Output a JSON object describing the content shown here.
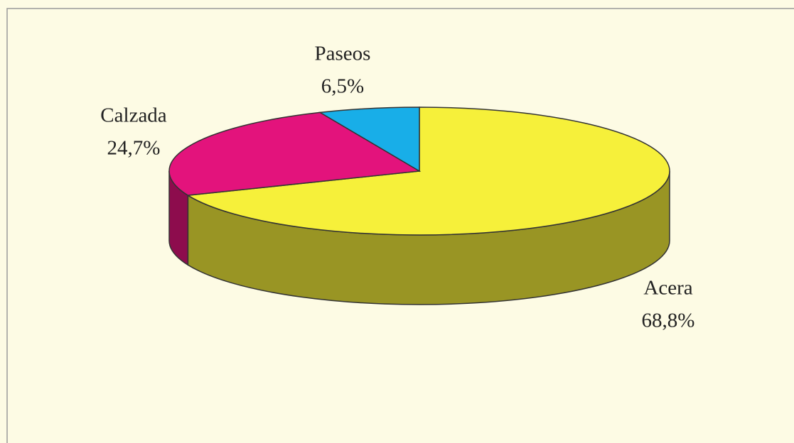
{
  "chart_data": {
    "type": "pie3d",
    "categories": [
      "Acera",
      "Calzada",
      "Paseos"
    ],
    "values": [
      68.8,
      24.7,
      6.5
    ],
    "value_labels": [
      "68,8%",
      "24,7%",
      "6,5%"
    ],
    "colors": [
      "#f6f03a",
      "#e3137c",
      "#18aee8"
    ]
  }
}
